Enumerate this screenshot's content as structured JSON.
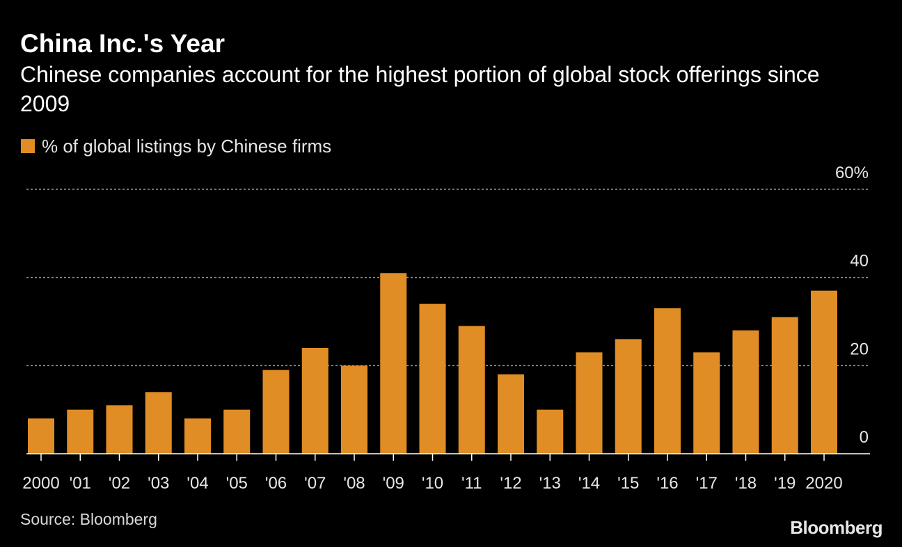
{
  "colors": {
    "background": "#000000",
    "bar": "#e08d25",
    "gridline": "#9a9a9a",
    "axis": "#ffffff",
    "text": "#e6e6e6"
  },
  "chart_data": {
    "type": "bar",
    "title": "China Inc.'s Year",
    "subtitle": "Chinese companies account for the highest portion of global stock offerings since 2009",
    "legend": "% of global listings by Chinese firms",
    "categories": [
      "2000",
      "'01",
      "'02",
      "'03",
      "'04",
      "'05",
      "'06",
      "'07",
      "'08",
      "'09",
      "'10",
      "'11",
      "'12",
      "'13",
      "'14",
      "'15",
      "'16",
      "'17",
      "'18",
      "'19",
      "2020"
    ],
    "values": [
      8,
      10,
      11,
      14,
      8,
      10,
      19,
      24,
      20,
      41,
      34,
      29,
      18,
      10,
      23,
      26,
      33,
      23,
      28,
      31,
      37
    ],
    "ylim": [
      0,
      60
    ],
    "yticks": [
      0,
      20,
      40,
      60
    ],
    "ytick_labels": [
      "0",
      "20",
      "40",
      "60%"
    ],
    "grid": true,
    "xlabel": "",
    "ylabel": ""
  },
  "footer": {
    "source": "Source: Bloomberg",
    "brand": "Bloomberg"
  }
}
